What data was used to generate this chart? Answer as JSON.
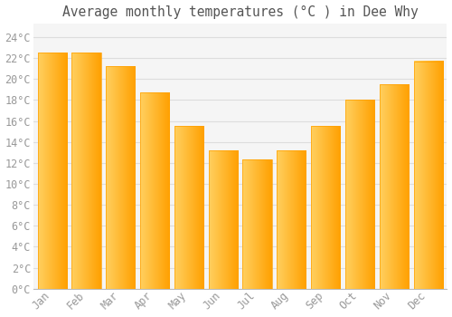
{
  "title": "Average monthly temperatures (°C ) in Dee Why",
  "months": [
    "Jan",
    "Feb",
    "Mar",
    "Apr",
    "May",
    "Jun",
    "Jul",
    "Aug",
    "Sep",
    "Oct",
    "Nov",
    "Dec"
  ],
  "values": [
    22.5,
    22.5,
    21.2,
    18.7,
    15.5,
    13.2,
    12.3,
    13.2,
    15.5,
    18.0,
    19.5,
    21.7
  ],
  "bar_color_left": "#FFD060",
  "bar_color_right": "#FFA000",
  "background_color": "#FFFFFF",
  "plot_bg_color": "#F5F5F5",
  "grid_color": "#DDDDDD",
  "tick_label_color": "#999999",
  "title_color": "#555555",
  "ylim": [
    0,
    25
  ],
  "yticks": [
    0,
    2,
    4,
    6,
    8,
    10,
    12,
    14,
    16,
    18,
    20,
    22,
    24
  ],
  "title_fontsize": 10.5,
  "tick_fontsize": 8.5,
  "bar_width": 0.85
}
